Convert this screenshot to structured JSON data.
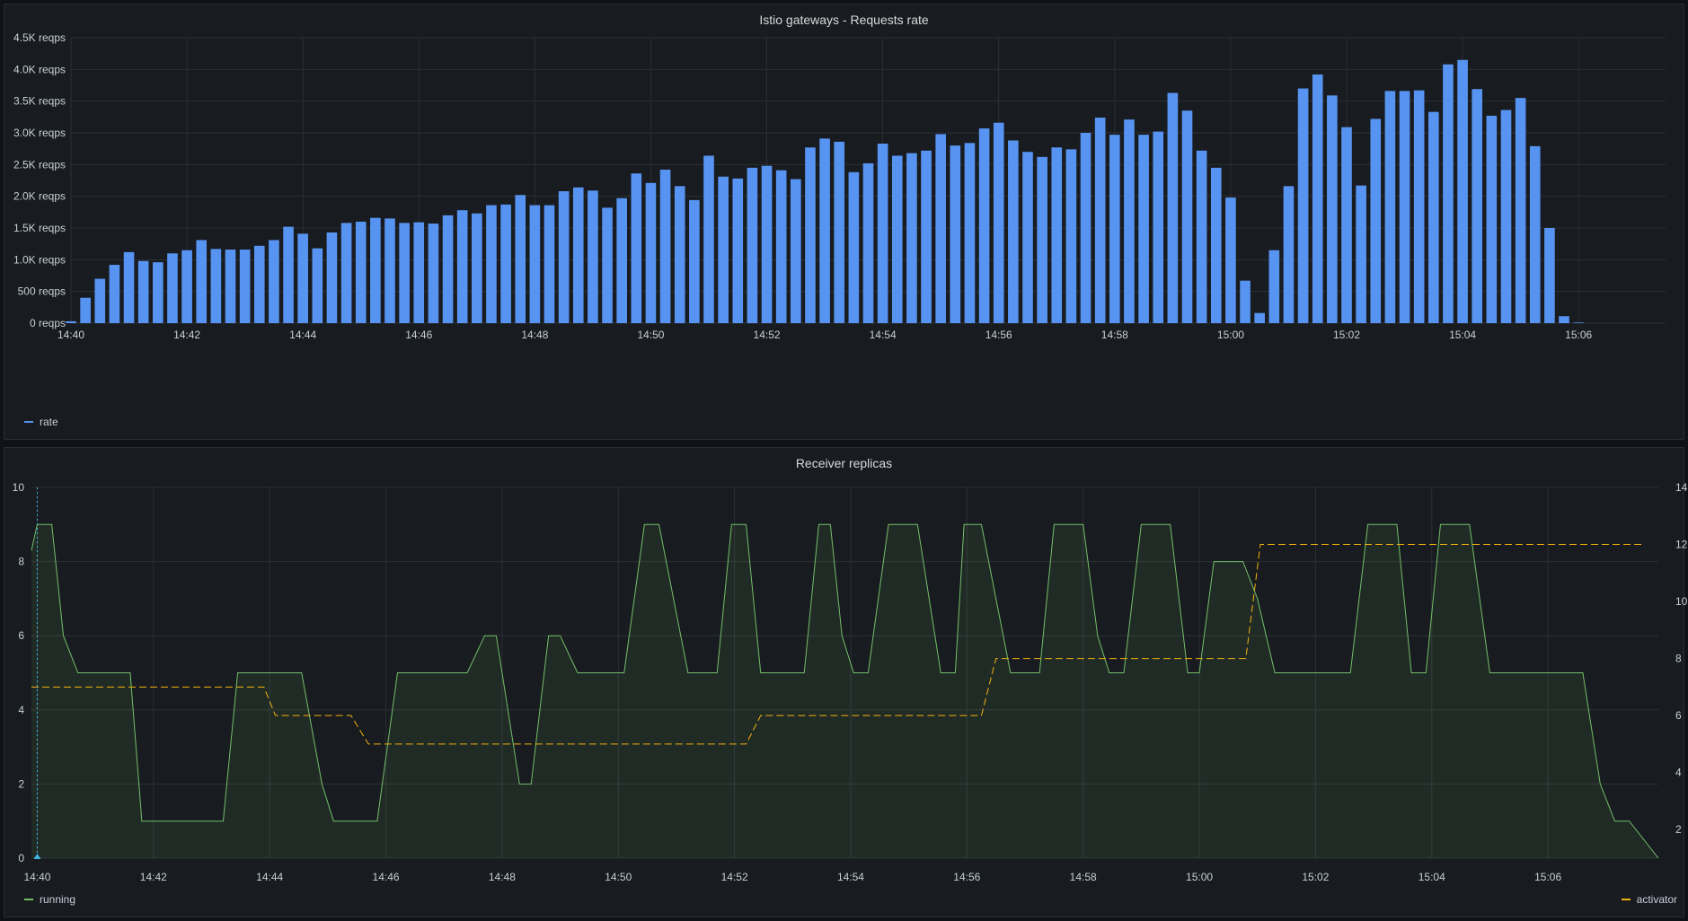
{
  "colors": {
    "rate": "#5794f2",
    "running": "#73bf69",
    "activator": "#f2b10e",
    "grid": "#2c2f35",
    "cursor": "#3db7e4"
  },
  "panels": {
    "top": {
      "title": "Istio gateways - Requests rate",
      "legend": "rate"
    },
    "bottom": {
      "title": "Receiver replicas",
      "legend_left": "running",
      "legend_right": "activator"
    }
  },
  "chart_data": [
    {
      "type": "bar",
      "title": "Istio gateways - Requests rate",
      "x_range_minutes": [
        0,
        27.5
      ],
      "x_ticks": [
        "14:40",
        "14:42",
        "14:44",
        "14:46",
        "14:48",
        "14:50",
        "14:52",
        "14:54",
        "14:56",
        "14:58",
        "15:00",
        "15:02",
        "15:04",
        "15:06"
      ],
      "x_tick_minutes": [
        0,
        2,
        4,
        6,
        8,
        10,
        12,
        14,
        16,
        18,
        20,
        22,
        24,
        26
      ],
      "y_ticks": [
        "0 reqps",
        "500 reqps",
        "1.0K reqps",
        "1.5K reqps",
        "2.0K reqps",
        "2.5K reqps",
        "3.0K reqps",
        "3.5K reqps",
        "4.0K reqps",
        "4.5K reqps"
      ],
      "ylim": [
        0,
        4500
      ],
      "series": [
        {
          "name": "rate",
          "start_minute": 0,
          "step_minutes": 0.25,
          "values": [
            30,
            400,
            700,
            920,
            1120,
            980,
            960,
            1100,
            1150,
            1310,
            1170,
            1160,
            1160,
            1220,
            1310,
            1520,
            1410,
            1180,
            1430,
            1580,
            1600,
            1660,
            1650,
            1580,
            1590,
            1570,
            1700,
            1780,
            1730,
            1860,
            1870,
            2020,
            1860,
            1860,
            2080,
            2140,
            2090,
            1820,
            1970,
            2360,
            2210,
            2420,
            2160,
            1940,
            2640,
            2310,
            2280,
            2450,
            2480,
            2410,
            2270,
            2770,
            2910,
            2860,
            2380,
            2520,
            2830,
            2640,
            2680,
            2720,
            2980,
            2800,
            2840,
            3070,
            3160,
            2880,
            2700,
            2620,
            2770,
            2740,
            3000,
            3240,
            2970,
            3210,
            2970,
            3020,
            3630,
            3350,
            2720,
            2450,
            1980,
            670,
            160,
            1150,
            2160,
            3700,
            3920,
            3590,
            3090,
            2170,
            3220,
            3660,
            3660,
            3670,
            3330,
            4080,
            4150,
            3690,
            3270,
            3360,
            3550,
            2790,
            1500,
            110,
            10,
            0,
            0,
            0,
            0,
            0,
            0
          ]
        }
      ]
    },
    {
      "type": "line",
      "title": "Receiver replicas",
      "x_range_minutes": [
        0,
        27.9
      ],
      "x_ticks": [
        "14:40",
        "14:42",
        "14:44",
        "14:46",
        "14:48",
        "14:50",
        "14:52",
        "14:54",
        "14:56",
        "14:58",
        "15:00",
        "15:02",
        "15:04",
        "15:06"
      ],
      "x_tick_minutes": [
        0,
        2,
        4,
        6,
        8,
        10,
        12,
        14,
        16,
        18,
        20,
        22,
        24,
        26
      ],
      "y_left_ticks": [
        "0",
        "2",
        "4",
        "6",
        "8",
        "10"
      ],
      "ylim_left": [
        0,
        10
      ],
      "y_right_ticks": [
        "2",
        "4",
        "6",
        "8",
        "10",
        "12",
        "14"
      ],
      "ylim_right": [
        1,
        14
      ],
      "series": [
        {
          "name": "running",
          "axis": "left",
          "fill": true,
          "points": [
            [
              -0.1,
              8.3
            ],
            [
              0,
              9
            ],
            [
              0.25,
              9
            ],
            [
              0.45,
              6
            ],
            [
              0.7,
              5
            ],
            [
              1.6,
              5
            ],
            [
              1.8,
              1
            ],
            [
              3.2,
              1
            ],
            [
              3.45,
              5
            ],
            [
              4.55,
              5
            ],
            [
              4.9,
              2
            ],
            [
              5.1,
              1
            ],
            [
              5.85,
              1
            ],
            [
              6.2,
              5
            ],
            [
              7.4,
              5
            ],
            [
              7.7,
              6
            ],
            [
              7.9,
              6
            ],
            [
              8.3,
              2
            ],
            [
              8.5,
              2
            ],
            [
              8.8,
              6
            ],
            [
              9.0,
              6
            ],
            [
              9.3,
              5
            ],
            [
              10.1,
              5
            ],
            [
              10.45,
              9
            ],
            [
              10.7,
              9
            ],
            [
              11.2,
              5
            ],
            [
              11.7,
              5
            ],
            [
              11.95,
              9
            ],
            [
              12.2,
              9
            ],
            [
              12.45,
              5
            ],
            [
              13.2,
              5
            ],
            [
              13.45,
              9
            ],
            [
              13.65,
              9
            ],
            [
              13.85,
              6
            ],
            [
              14.05,
              5
            ],
            [
              14.3,
              5
            ],
            [
              14.65,
              9
            ],
            [
              15.15,
              9
            ],
            [
              15.55,
              5
            ],
            [
              15.8,
              5
            ],
            [
              15.95,
              9
            ],
            [
              16.25,
              9
            ],
            [
              16.75,
              5
            ],
            [
              17.25,
              5
            ],
            [
              17.5,
              9
            ],
            [
              18.0,
              9
            ],
            [
              18.25,
              6
            ],
            [
              18.45,
              5
            ],
            [
              18.7,
              5
            ],
            [
              19.0,
              9
            ],
            [
              19.5,
              9
            ],
            [
              19.8,
              5
            ],
            [
              20.0,
              5
            ],
            [
              20.25,
              8
            ],
            [
              20.75,
              8
            ],
            [
              21.0,
              7
            ],
            [
              21.3,
              5
            ],
            [
              22.6,
              5
            ],
            [
              22.9,
              9
            ],
            [
              23.4,
              9
            ],
            [
              23.65,
              5
            ],
            [
              23.9,
              5
            ],
            [
              24.15,
              9
            ],
            [
              24.65,
              9
            ],
            [
              25.0,
              5
            ],
            [
              26.6,
              5
            ],
            [
              26.9,
              2
            ],
            [
              27.15,
              1
            ],
            [
              27.4,
              1
            ],
            [
              27.9,
              0
            ]
          ]
        },
        {
          "name": "activator",
          "axis": "right",
          "dashed": true,
          "points": [
            [
              -0.1,
              7
            ],
            [
              3.9,
              7
            ],
            [
              4.1,
              6
            ],
            [
              5.4,
              6
            ],
            [
              5.7,
              5
            ],
            [
              12.2,
              5
            ],
            [
              12.45,
              6
            ],
            [
              16.25,
              6
            ],
            [
              16.5,
              8
            ],
            [
              19.8,
              8
            ],
            [
              20.8,
              8
            ],
            [
              21.05,
              12
            ],
            [
              26.0,
              12
            ],
            [
              26.6,
              12
            ],
            [
              27.65,
              12
            ]
          ]
        }
      ]
    }
  ]
}
